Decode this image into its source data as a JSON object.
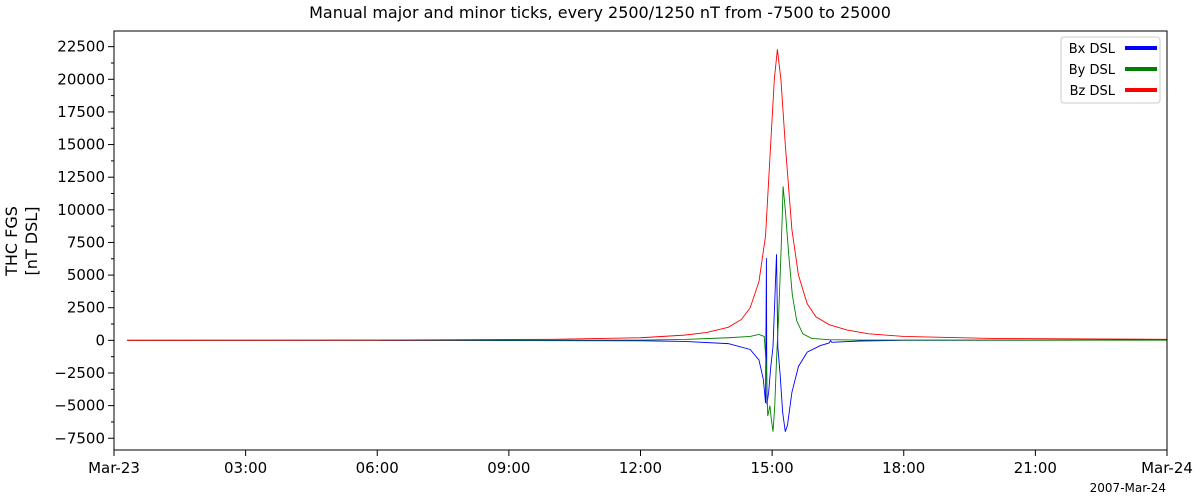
{
  "chart_data": {
    "type": "line",
    "title": "Manual major and minor ticks, every 2500/1250 nT from -7500 to 25000",
    "ylabel_lines": [
      "THC FGS",
      "[nT DSL]"
    ],
    "xlabel": "",
    "date_label": "2007-Mar-24",
    "x_unit": "hours since 2007-03-23 00:00",
    "xlim": [
      0,
      24
    ],
    "ylim": [
      -8400,
      23700
    ],
    "x_ticks": [
      {
        "x": 0,
        "label": "Mar-23"
      },
      {
        "x": 3,
        "label": "03:00"
      },
      {
        "x": 6,
        "label": "06:00"
      },
      {
        "x": 9,
        "label": "09:00"
      },
      {
        "x": 12,
        "label": "12:00"
      },
      {
        "x": 15,
        "label": "15:00"
      },
      {
        "x": 18,
        "label": "18:00"
      },
      {
        "x": 21,
        "label": "21:00"
      },
      {
        "x": 24,
        "label": "Mar-24"
      }
    ],
    "y_major_ticks": [
      -7500,
      -5000,
      -2500,
      0,
      2500,
      5000,
      7500,
      10000,
      12500,
      15000,
      17500,
      20000,
      22500
    ],
    "y_tick_labels": [
      "−7500",
      "−5000",
      "−2500",
      "0",
      "2500",
      "5000",
      "7500",
      "10000",
      "12500",
      "15000",
      "17500",
      "20000",
      "22500"
    ],
    "y_minor_step": 1250,
    "grid": false,
    "legend_position": "top-right",
    "series": [
      {
        "name": "Bx DSL",
        "color": "#0000ff",
        "points": [
          [
            0.3,
            0
          ],
          [
            6,
            0
          ],
          [
            12,
            -30
          ],
          [
            13,
            -80
          ],
          [
            14,
            -250
          ],
          [
            14.5,
            -700
          ],
          [
            14.7,
            -1500
          ],
          [
            14.8,
            -3000
          ],
          [
            14.85,
            -4800
          ],
          [
            14.87,
            6300
          ],
          [
            14.88,
            -4900
          ],
          [
            14.92,
            -4000
          ],
          [
            14.97,
            -2000
          ],
          [
            15.02,
            -500
          ],
          [
            15.06,
            3000
          ],
          [
            15.1,
            6600
          ],
          [
            15.13,
            -500
          ],
          [
            15.18,
            -2500
          ],
          [
            15.24,
            -5500
          ],
          [
            15.3,
            -7000
          ],
          [
            15.35,
            -6500
          ],
          [
            15.45,
            -4000
          ],
          [
            15.6,
            -2000
          ],
          [
            15.8,
            -900
          ],
          [
            16.1,
            -400
          ],
          [
            16.3,
            -200
          ],
          [
            16.33,
            -20
          ],
          [
            16.36,
            -150
          ],
          [
            17,
            -50
          ],
          [
            18,
            0
          ],
          [
            24,
            40
          ]
        ]
      },
      {
        "name": "By DSL",
        "color": "#008000",
        "points": [
          [
            0.3,
            0
          ],
          [
            6,
            0
          ],
          [
            12,
            20
          ],
          [
            13,
            70
          ],
          [
            14,
            200
          ],
          [
            14.5,
            300
          ],
          [
            14.7,
            450
          ],
          [
            14.82,
            300
          ],
          [
            14.87,
            -2000
          ],
          [
            14.9,
            -5800
          ],
          [
            14.95,
            -5000
          ],
          [
            14.98,
            -6000
          ],
          [
            15.02,
            -7000
          ],
          [
            15.06,
            -5000
          ],
          [
            15.1,
            -1500
          ],
          [
            15.15,
            2000
          ],
          [
            15.2,
            6500
          ],
          [
            15.23,
            9500
          ],
          [
            15.25,
            11800
          ],
          [
            15.3,
            10000
          ],
          [
            15.38,
            6500
          ],
          [
            15.46,
            3500
          ],
          [
            15.56,
            1500
          ],
          [
            15.7,
            500
          ],
          [
            15.9,
            150
          ],
          [
            16.3,
            50
          ],
          [
            17,
            20
          ],
          [
            24,
            10
          ]
        ]
      },
      {
        "name": "Bz DSL",
        "color": "#ff0000",
        "points": [
          [
            0.3,
            0
          ],
          [
            6,
            20
          ],
          [
            10,
            80
          ],
          [
            12,
            200
          ],
          [
            13,
            400
          ],
          [
            13.5,
            600
          ],
          [
            14,
            1000
          ],
          [
            14.3,
            1600
          ],
          [
            14.5,
            2500
          ],
          [
            14.7,
            4500
          ],
          [
            14.85,
            8000
          ],
          [
            14.95,
            14000
          ],
          [
            15.05,
            20000
          ],
          [
            15.12,
            22300
          ],
          [
            15.2,
            20000
          ],
          [
            15.3,
            15000
          ],
          [
            15.45,
            8500
          ],
          [
            15.6,
            5000
          ],
          [
            15.8,
            2800
          ],
          [
            16.0,
            1800
          ],
          [
            16.3,
            1200
          ],
          [
            16.7,
            800
          ],
          [
            17.2,
            500
          ],
          [
            18,
            300
          ],
          [
            20,
            150
          ],
          [
            24,
            80
          ]
        ]
      }
    ]
  }
}
